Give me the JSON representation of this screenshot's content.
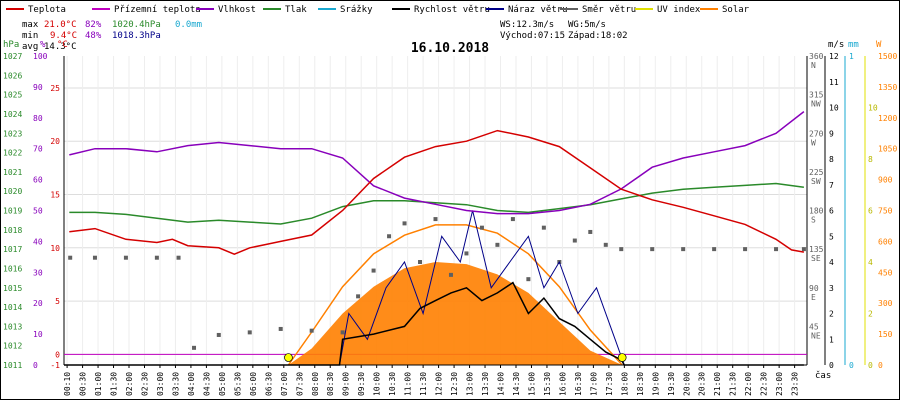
{
  "chart_data": {
    "type": "line",
    "title": "16.10.2018",
    "time_unit_label": "čas",
    "colors": {
      "Teplota": "#d40000",
      "Přízemní teplota": "#c000c0",
      "Vlhkost": "#8800bb",
      "Tlak": "#2a8a2a",
      "Srážky": "#19a8d0",
      "Rychlost větru": "#000000",
      "Náraz větru": "#000088",
      "Směr větru": "#606060",
      "UV index": "#e0e000",
      "Solar": "#ff8000"
    },
    "legend": [
      {
        "name": "Teplota"
      },
      {
        "name": "Přízemní teplota"
      },
      {
        "name": "Vlhkost"
      },
      {
        "name": "Tlak"
      },
      {
        "name": "Srážky"
      },
      {
        "name": "Rychlost větru"
      },
      {
        "name": "Náraz větru"
      },
      {
        "name": "Směr větru"
      },
      {
        "name": "UV index"
      },
      {
        "name": "Solar"
      }
    ],
    "stats": {
      "max_label": "max",
      "max_temp": "21.0°C",
      "max_hum": "82%",
      "max_press": "1020.4hPa",
      "max_rain": "0.0mm",
      "min_label": "min",
      "min_temp": "9.4°C",
      "min_hum": "48%",
      "min_press": "1018.3hPa",
      "avg_label": "avg",
      "avg_temp": "14.3°C",
      "ws": "WS:12.3m/s",
      "wg": "WG:5m/s",
      "sunrise": "Východ:07:15",
      "sunset": "Západ:18:02"
    },
    "axes": {
      "units": [
        "hPa",
        "%",
        "°C",
        "m/s",
        "mm",
        "W"
      ],
      "pressure_ticks": [
        1027,
        1026,
        1025,
        1024,
        1023,
        1022,
        1021,
        1020,
        1019,
        1018,
        1017,
        1016,
        1015,
        1014,
        1013,
        1012,
        1011
      ],
      "humidity_ticks": [
        100,
        90,
        80,
        70,
        60,
        50,
        40,
        30,
        20,
        10,
        0
      ],
      "temp_ticks": [
        25,
        20,
        15,
        10,
        5,
        0,
        -1
      ],
      "direction_ticks": [
        "360 N",
        "315 NW",
        "270 W",
        "225 SW",
        "180 S",
        "135 SE",
        "90 E",
        "45 NE"
      ],
      "wind_ticks": [
        12,
        11,
        10,
        9,
        8,
        7,
        6,
        5,
        4,
        3,
        2,
        1,
        0
      ],
      "rain_ticks": [
        1,
        0
      ],
      "uv_ticks": [
        10,
        8,
        6,
        4,
        2,
        0
      ],
      "solar_ticks": [
        1500,
        1350,
        1200,
        1050,
        900,
        750,
        600,
        450,
        300,
        150,
        0
      ],
      "ranges": {
        "temp": [
          -1,
          28
        ],
        "hum": [
          0,
          100
        ],
        "press": [
          1011,
          1027
        ],
        "wind": [
          0,
          12
        ],
        "dir": [
          0,
          360
        ],
        "solar": [
          0,
          1500
        ]
      }
    },
    "x_ticks": [
      "00:10",
      "00:30",
      "01:00",
      "01:30",
      "02:00",
      "02:30",
      "03:00",
      "03:30",
      "04:00",
      "04:30",
      "05:00",
      "05:30",
      "06:00",
      "06:30",
      "07:00",
      "07:30",
      "08:00",
      "08:30",
      "09:00",
      "09:30",
      "10:00",
      "10:30",
      "11:00",
      "11:30",
      "12:00",
      "12:30",
      "13:00",
      "13:30",
      "14:00",
      "14:30",
      "15:00",
      "15:30",
      "16:00",
      "16:30",
      "17:00",
      "17:30",
      "18:00",
      "18:30",
      "19:00",
      "19:30",
      "20:00",
      "20:30",
      "21:00",
      "21:30",
      "22:00",
      "22:30",
      "23:00",
      "23:30"
    ],
    "series": {
      "temperature_c": {
        "t": [
          0.17,
          1,
          2,
          3,
          3.5,
          4,
          5,
          5.5,
          6,
          6.5,
          7,
          8,
          9,
          10,
          11,
          12,
          13,
          14,
          15,
          16,
          17,
          18,
          19,
          20,
          21,
          22,
          23,
          23.5,
          23.9
        ],
        "v": [
          11.5,
          11.8,
          10.8,
          10.5,
          10.8,
          10.2,
          10.0,
          9.4,
          10.0,
          10.3,
          10.6,
          11.2,
          13.5,
          16.5,
          18.5,
          19.5,
          20.0,
          21.0,
          20.4,
          19.5,
          17.5,
          15.5,
          14.5,
          13.8,
          13.0,
          12.2,
          10.8,
          9.8,
          9.6
        ]
      },
      "humidity_pct": {
        "t": [
          0.17,
          1,
          2,
          3,
          4,
          5,
          6,
          7,
          8,
          9,
          10,
          11,
          12,
          13,
          14,
          15,
          16,
          17,
          18,
          19,
          20,
          21,
          22,
          23,
          23.9
        ],
        "v": [
          68,
          70,
          70,
          69,
          71,
          72,
          71,
          70,
          70,
          67,
          58,
          54,
          52,
          50,
          49,
          49,
          50,
          52,
          57,
          64,
          67,
          69,
          71,
          75,
          82
        ]
      },
      "pressure_hpa": {
        "t": [
          0.17,
          1,
          2,
          3,
          4,
          5,
          6,
          7,
          8,
          9,
          10,
          11,
          12,
          13,
          14,
          15,
          16,
          17,
          18,
          19,
          20,
          21,
          22,
          23,
          23.9
        ],
        "v": [
          1018.9,
          1018.9,
          1018.8,
          1018.6,
          1018.4,
          1018.5,
          1018.4,
          1018.3,
          1018.6,
          1019.2,
          1019.5,
          1019.5,
          1019.4,
          1019.3,
          1019.0,
          1018.9,
          1019.1,
          1019.3,
          1019.6,
          1019.9,
          1020.1,
          1020.2,
          1020.3,
          1020.4,
          1020.2
        ]
      },
      "wind_speed_ms": {
        "t": [
          0,
          8.9,
          9.0,
          10,
          11,
          11.5,
          12,
          12.5,
          13,
          13.5,
          14,
          14.5,
          15,
          15.5,
          16,
          16.5,
          17,
          17.5,
          18,
          18.1,
          23.9
        ],
        "v": [
          0,
          0,
          1.0,
          1.2,
          1.5,
          2.2,
          2.5,
          2.8,
          3.0,
          2.5,
          2.8,
          3.2,
          2.0,
          2.6,
          1.8,
          1.5,
          1.0,
          0.5,
          0.2,
          0,
          0
        ]
      },
      "wind_gust_ms": {
        "t": [
          0,
          8.9,
          9.2,
          9.8,
          10.4,
          11,
          11.6,
          12.2,
          12.8,
          13.2,
          13.8,
          14.4,
          15,
          15.5,
          16,
          16.6,
          17.2,
          17.8,
          18.1,
          23.9
        ],
        "v": [
          0,
          0,
          2,
          1,
          3,
          4,
          2,
          5,
          4,
          6,
          3,
          4,
          5,
          3,
          4,
          2,
          3,
          1,
          0,
          0
        ]
      },
      "wind_dir_deg": {
        "t": [
          0.2,
          1,
          2,
          3,
          3.7,
          4.2,
          5,
          6,
          7,
          8,
          9,
          9.5,
          10,
          10.5,
          11,
          11.5,
          12,
          12.5,
          13,
          13.5,
          14,
          14.5,
          15,
          15.5,
          16,
          16.5,
          17,
          17.5,
          18,
          19,
          20,
          21,
          22,
          23,
          23.9
        ],
        "v": [
          125,
          125,
          125,
          125,
          125,
          20,
          35,
          38,
          42,
          40,
          38,
          80,
          110,
          150,
          165,
          120,
          170,
          105,
          130,
          160,
          140,
          170,
          100,
          160,
          120,
          145,
          155,
          140,
          135,
          135,
          135,
          135,
          135,
          135,
          135
        ]
      },
      "solar_wm2": {
        "t": [
          7.25,
          8,
          9,
          10,
          11,
          12,
          13,
          14,
          15,
          16,
          17,
          18.03
        ],
        "v": [
          0,
          80,
          250,
          380,
          470,
          500,
          490,
          440,
          350,
          210,
          70,
          0
        ]
      },
      "solar_max_wm2": {
        "t": [
          7.25,
          8,
          9,
          10,
          11,
          12,
          13,
          14,
          15,
          16,
          17,
          18.03
        ],
        "v": [
          0,
          160,
          380,
          540,
          630,
          680,
          680,
          640,
          540,
          380,
          170,
          0
        ]
      }
    }
  }
}
